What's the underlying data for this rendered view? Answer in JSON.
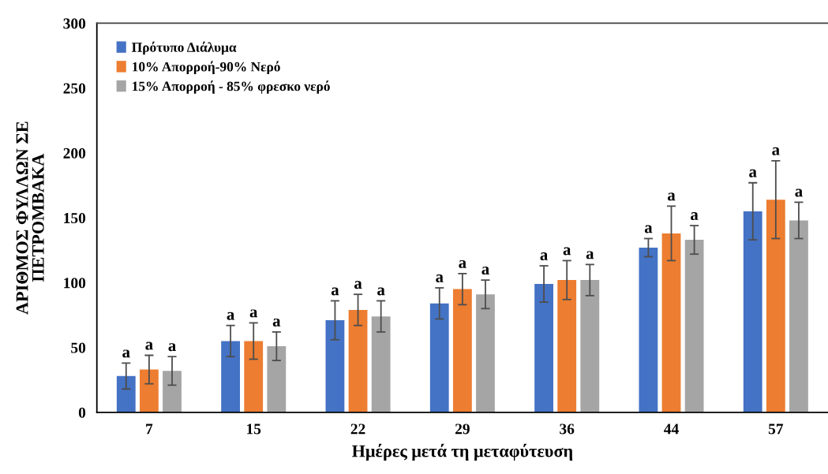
{
  "chart_data": {
    "type": "bar",
    "xlabel": "Ημέρες μετά τη μεταφύτευση",
    "ylabel": "ΑΡΙΘΜΟΣ ΦΥΛΛΩΝ ΣΕ\nΠΕΤΡΟΜΒΑΚΑ",
    "categories": [
      "7",
      "15",
      "22",
      "29",
      "36",
      "44",
      "57"
    ],
    "series": [
      {
        "name": "Πρότυπο Διάλυμα",
        "color": "#4472c4",
        "values": [
          28,
          55,
          71,
          84,
          99,
          127,
          155
        ],
        "errors": [
          10,
          12,
          15,
          12,
          14,
          7,
          22
        ],
        "value_labels": [
          "a",
          "a",
          "a",
          "a",
          "a",
          "a",
          "a"
        ]
      },
      {
        "name": "10% Απορροή-90% Νερό",
        "color": "#ed7d31",
        "values": [
          33,
          55,
          79,
          95,
          102,
          138,
          164
        ],
        "errors": [
          11,
          14,
          12,
          12,
          15,
          21,
          30
        ],
        "value_labels": [
          "a",
          "a",
          "a",
          "a",
          "a",
          "a",
          "a"
        ]
      },
      {
        "name": "15% Απορροή - 85% φρεσκο νερό",
        "color": "#a5a5a5",
        "values": [
          32,
          51,
          74,
          91,
          102,
          133,
          148
        ],
        "errors": [
          11,
          11,
          12,
          11,
          12,
          11,
          14
        ],
        "value_labels": [
          "a",
          "a",
          "a",
          "a",
          "a",
          "a",
          "a"
        ]
      }
    ],
    "ylim": [
      0,
      300
    ],
    "yticks": [
      0,
      50,
      100,
      150,
      200,
      250,
      300
    ],
    "grid": false,
    "legend": "top left"
  }
}
